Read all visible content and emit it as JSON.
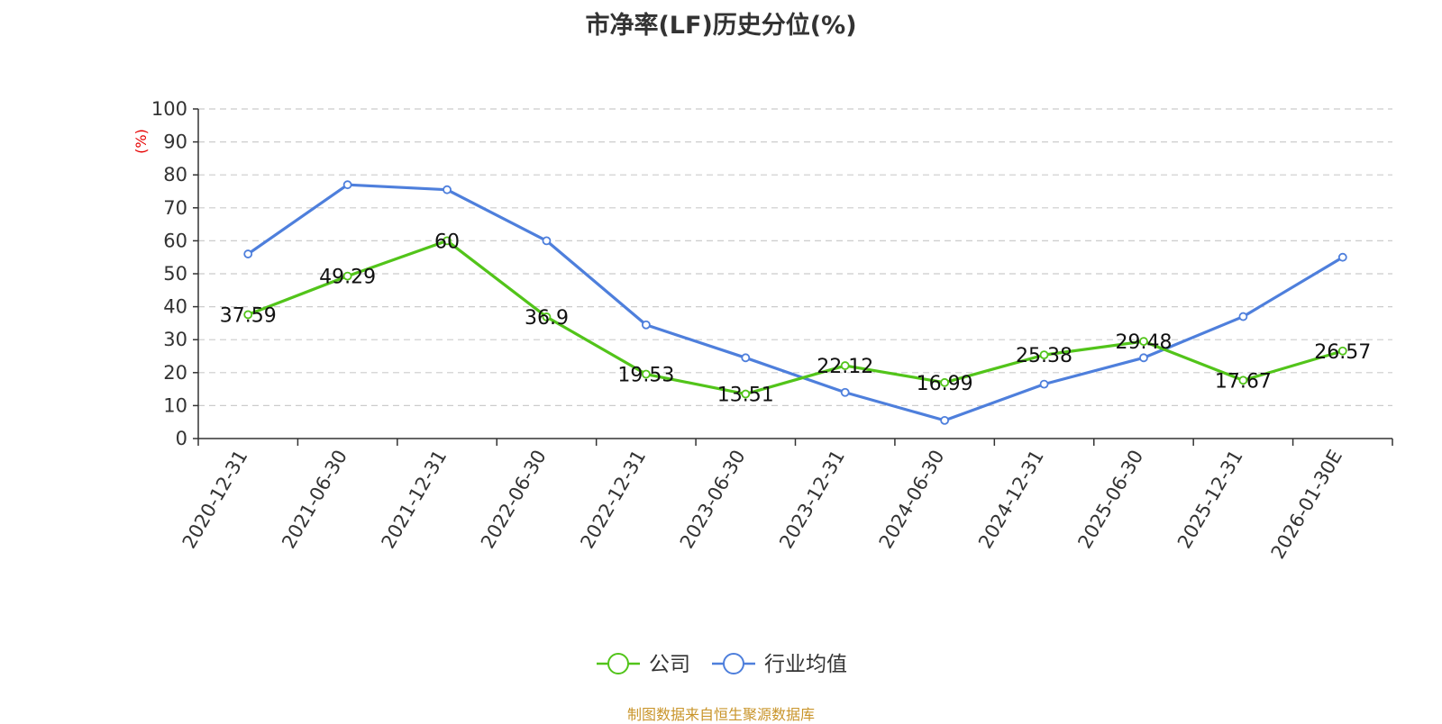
{
  "chart_data": {
    "type": "line",
    "title": "市净率(LF)历史分位(%)",
    "ylabel": "(%)",
    "xlabel": "",
    "ylim": [
      0,
      100
    ],
    "yticks": [
      "0",
      "10",
      "20",
      "30",
      "40",
      "50",
      "60",
      "70",
      "80",
      "90",
      "100"
    ],
    "categories": [
      "2020-12-31",
      "2021-06-30",
      "2021-12-31",
      "2022-06-30",
      "2022-12-31",
      "2023-06-30",
      "2023-12-31",
      "2024-06-30",
      "2024-12-31",
      "2025-06-30",
      "2025-12-31",
      "2026-01-30E"
    ],
    "grid": true,
    "legend_position": "bottom",
    "series": [
      {
        "name": "公司",
        "color": "#52c41a",
        "values": [
          37.59,
          49.29,
          60,
          36.9,
          19.53,
          13.51,
          22.12,
          16.99,
          25.38,
          29.48,
          17.67,
          26.57
        ],
        "labels": [
          "37.59",
          "49.29",
          "60",
          "36.9",
          "19.53",
          "13.51",
          "22.12",
          "16.99",
          "25.38",
          "29.48",
          "17.67",
          "26.57"
        ]
      },
      {
        "name": "行业均值",
        "color": "#4e7fdc",
        "values": [
          56,
          77,
          75.5,
          60,
          34.5,
          24.5,
          14,
          5.5,
          16.5,
          24.5,
          37,
          55
        ],
        "labels": []
      }
    ]
  },
  "source_note": "制图数据来自恒生聚源数据库"
}
